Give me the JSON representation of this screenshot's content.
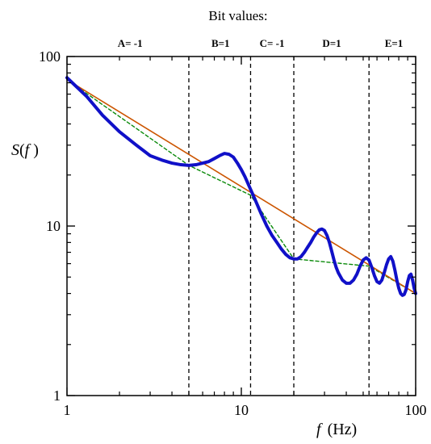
{
  "chart_data": {
    "type": "line",
    "title": "Bit values:",
    "xlabel_var": "f",
    "xlabel_unit": "(Hz)",
    "ylabel": "S(f )",
    "x_scale": "log",
    "y_scale": "log",
    "xlim": [
      1,
      100
    ],
    "ylim": [
      1,
      100
    ],
    "x_tick_labels": [
      {
        "value": 1,
        "label": "1"
      },
      {
        "value": 10,
        "label": "10"
      },
      {
        "value": 100,
        "label": "100"
      }
    ],
    "y_tick_labels": [
      {
        "value": 1,
        "label": "1"
      },
      {
        "value": 10,
        "label": "10"
      },
      {
        "value": 100,
        "label": "100"
      }
    ],
    "vertical_lines": [
      5,
      11.3,
      20,
      54
    ],
    "bit_labels": [
      {
        "text": "A= -1",
        "x": 2.3
      },
      {
        "text": "B=1",
        "x": 7.6
      },
      {
        "text": "C= -1",
        "x": 15.0
      },
      {
        "text": "D=1",
        "x": 33
      },
      {
        "text": "E=1",
        "x": 75
      }
    ],
    "series": [
      {
        "style": "thick-blue",
        "color": "#1010c8",
        "x": [
          1,
          1.3,
          1.6,
          2,
          2.5,
          3,
          3.5,
          4,
          4.5,
          5,
          5.5,
          6,
          6.5,
          7,
          7.5,
          8,
          8.5,
          9,
          9.5,
          10,
          10.5,
          11,
          11.5,
          12,
          13,
          14,
          15,
          16,
          17,
          18,
          19,
          20,
          21,
          22,
          23,
          24,
          25,
          26,
          27,
          28,
          29,
          30,
          31,
          32,
          33,
          34,
          35,
          36,
          38,
          40,
          42,
          44,
          46,
          48,
          50,
          52,
          54,
          56,
          58,
          60,
          62,
          64,
          66,
          68,
          70,
          72,
          74,
          76,
          78,
          80,
          82,
          84,
          86,
          88,
          90,
          92,
          94,
          96,
          98,
          100
        ],
        "y": [
          75,
          58,
          45,
          36,
          30,
          26,
          24.5,
          23.5,
          23,
          22.8,
          23,
          23.5,
          24,
          25,
          26,
          26.8,
          26.5,
          25.5,
          23.5,
          21.5,
          19.5,
          17.5,
          15.8,
          14.3,
          11.8,
          10,
          8.8,
          8,
          7.3,
          6.8,
          6.5,
          6.4,
          6.4,
          6.6,
          7,
          7.5,
          8,
          8.6,
          9.1,
          9.5,
          9.6,
          9.4,
          8.8,
          8,
          7.1,
          6.3,
          5.7,
          5.3,
          4.8,
          4.6,
          4.6,
          4.8,
          5.2,
          5.8,
          6.3,
          6.5,
          6.3,
          5.7,
          5.1,
          4.7,
          4.6,
          4.8,
          5.3,
          5.9,
          6.4,
          6.6,
          6.2,
          5.5,
          4.8,
          4.3,
          4,
          3.9,
          3.95,
          4.2,
          4.7,
          5.1,
          5.2,
          4.8,
          4.3,
          4
        ]
      },
      {
        "style": "thin-orange",
        "color": "#cc5500",
        "x": [
          1,
          100
        ],
        "y": [
          73,
          4
        ]
      },
      {
        "style": "dashed-green",
        "color": "#0a8a0a",
        "x": [
          1,
          5,
          11.3,
          20,
          54,
          100
        ],
        "y": [
          73,
          22.8,
          15.2,
          6.4,
          5.8,
          4
        ]
      }
    ]
  }
}
